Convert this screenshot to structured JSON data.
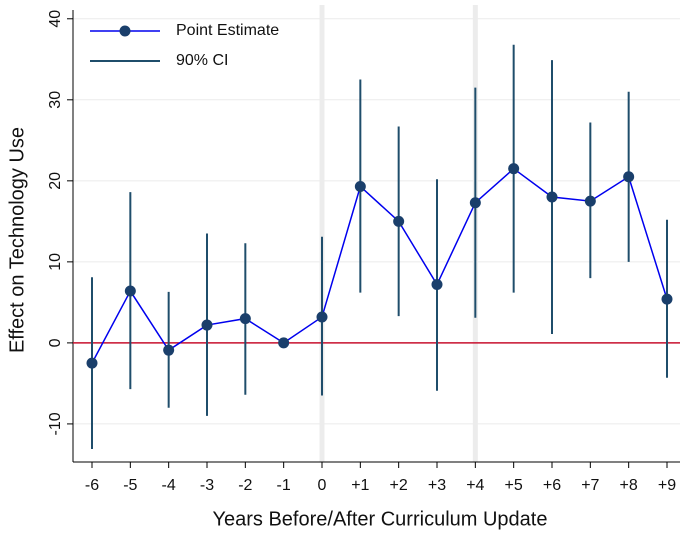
{
  "chart_data": {
    "type": "event_study",
    "xlabel": "Years Before/After Curriculum Update",
    "ylabel": "Effect on Technology Use",
    "categories": [
      "-6",
      "-5",
      "-4",
      "-3",
      "-2",
      "-1",
      "0",
      "+1",
      "+2",
      "+3",
      "+4",
      "+5",
      "+6",
      "+7",
      "+8",
      "+9"
    ],
    "series": [
      {
        "name": "Point Estimate",
        "color": "#1a3f6b",
        "line_color": "#0000ee",
        "values": [
          -2.5,
          6.4,
          -0.9,
          2.2,
          3.0,
          0,
          3.2,
          19.3,
          15.0,
          7.2,
          17.3,
          21.5,
          18.0,
          17.5,
          20.5,
          5.4
        ]
      },
      {
        "name": "90% CI",
        "color": "#1f4d6b",
        "lower": [
          -13.1,
          -5.7,
          -8.0,
          -9.0,
          -6.4,
          null,
          -6.5,
          6.2,
          3.3,
          -5.9,
          3.1,
          6.2,
          1.1,
          8.0,
          10.0,
          -4.3
        ],
        "upper": [
          8.1,
          18.6,
          6.3,
          13.5,
          12.3,
          null,
          13.1,
          32.5,
          26.7,
          20.2,
          31.5,
          36.8,
          34.9,
          27.2,
          31.0,
          15.2
        ]
      }
    ],
    "reference_line": 0,
    "reference_color": "#c8102e",
    "ylim": [
      -14.7,
      41.7
    ],
    "yticks": [
      -10,
      0,
      10,
      20,
      30,
      40
    ],
    "grid": true,
    "legend": "upper left"
  }
}
